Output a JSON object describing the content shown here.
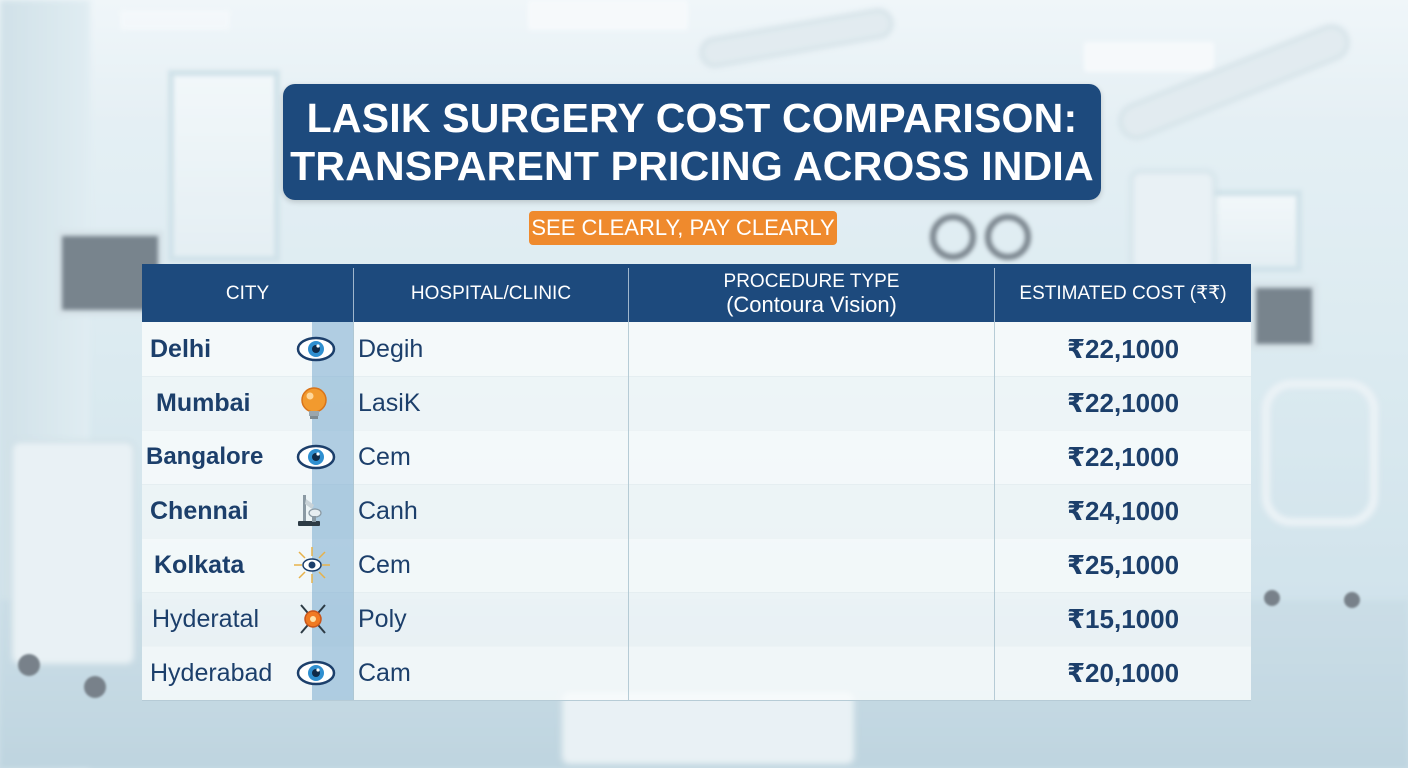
{
  "title": {
    "line1": "LASIK SURGERY COST COMPARISON:",
    "line2": "TRANSPARENT PRICING ACROSS INDIA"
  },
  "tagline": "SEE CLEARLY, PAY CLEARLY",
  "table": {
    "headers": {
      "city": "CITY",
      "hospital": "HOSPITAL/CLINIC",
      "procedure_line1": "PROCEDURE TYPE",
      "procedure_line2": "(Contoura Vision)",
      "cost": "ESTIMATED COST (₹₹)"
    },
    "rows": [
      {
        "city": "Delhi",
        "icon": "eye-icon",
        "clinic": "Degih",
        "procedure": "",
        "cost": "₹22,1000"
      },
      {
        "city": "Mumbai",
        "icon": "lightbulb-icon",
        "clinic": "LasiK",
        "procedure": "",
        "cost": "₹22,1000"
      },
      {
        "city": "Bangalore",
        "icon": "eye-icon",
        "clinic": "Cem",
        "procedure": "",
        "cost": "₹22,1000"
      },
      {
        "city": "Chennai",
        "icon": "microscope-icon",
        "clinic": "Canh",
        "procedure": "",
        "cost": "₹24,1000"
      },
      {
        "city": "Kolkata",
        "icon": "sunburst-eye-icon",
        "clinic": "Cem",
        "procedure": "",
        "cost": "₹25,1000"
      },
      {
        "city": "Hyderatal",
        "icon": "laser-target-icon",
        "clinic": "Poly",
        "procedure": "",
        "cost": "₹15,1000"
      },
      {
        "city": "Hyderabad",
        "icon": "eye-icon",
        "clinic": "Cam",
        "procedure": "",
        "cost": "₹20,1000"
      }
    ]
  },
  "colors": {
    "header_navy": "#1d4a7d",
    "tagline_orange": "#ef8a2d",
    "text_navy": "#1c3f6b",
    "eye_blue": "#2f8fd0"
  }
}
